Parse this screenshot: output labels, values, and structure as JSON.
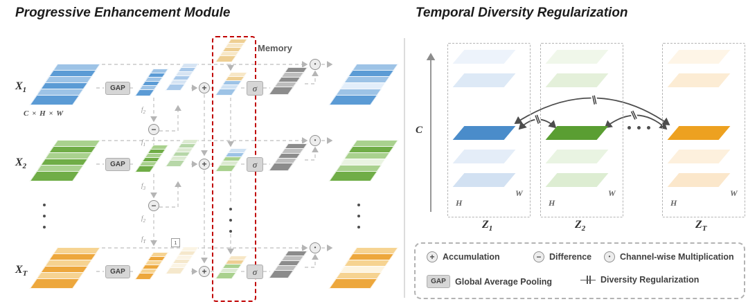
{
  "left": {
    "title": "Progressive Enhancement Module",
    "x_base": "X",
    "rows": [
      {
        "sub": "1"
      },
      {
        "sub": "2"
      },
      {
        "sub": "T"
      }
    ],
    "dims_label": "C × H × W",
    "gap_label": "GAP",
    "sigma_label": "σ",
    "memory_label": "Memory",
    "one_label": "1",
    "marks": [
      {
        "base": "f",
        "sub": "2"
      },
      {
        "base": "f",
        "sub": "1"
      },
      {
        "base": "f",
        "sub": "3"
      },
      {
        "base": "f",
        "sub": "2"
      },
      {
        "base": "f",
        "sub": "T"
      }
    ]
  },
  "right": {
    "title": "Temporal Diversity Regularization",
    "axis_label": "C",
    "z_base": "Z",
    "reg_symbol": "∥",
    "frames": [
      {
        "sub": "1",
        "h_label": "H",
        "w_label": "W"
      },
      {
        "sub": "2",
        "h_label": "H",
        "w_label": "W"
      },
      {
        "sub": "T",
        "h_label": "H",
        "w_label": "W"
      }
    ]
  },
  "operators": {
    "plus": "+",
    "minus": "−",
    "multiply": "•",
    "gap": "GAP"
  },
  "legend": {
    "accumulation_label": "Accumulation",
    "difference_label": "Difference",
    "channelwise_label": "Channel-wise Multiplication",
    "gap_label": "Global Average Pooling",
    "diversity_label": "Diversity Regularization"
  },
  "colors": {
    "accent_red": "#c00000",
    "stacks": {
      "blue": [
        "#5b9bd5",
        "#9dc3e6"
      ],
      "blue_light": [
        "#a9c9ea",
        "#d6e4f3"
      ],
      "green": [
        "#70ad47",
        "#a9d18e"
      ],
      "green_light": [
        "#b7d7a8",
        "#dcead1"
      ],
      "orange": [
        "#eda73c",
        "#f6d391"
      ],
      "pale": [
        "#f5e8cc",
        "#fbf4e4"
      ],
      "gray": [
        "#8c8c8c",
        "#bdbdbd"
      ],
      "mem_tan": [
        "#eecf93",
        "#f7e7c6"
      ],
      "mem_blue": [
        "#9dc3e6",
        "#cfe2f3",
        "#9dc3e6",
        "#eecf93",
        "#f7e7c6"
      ],
      "mem_green": [
        "#a9d18e",
        "#dcead1",
        "#a9d18e",
        "#9dc3e6",
        "#cfe2f3"
      ],
      "mem_mix": [
        "#a9d18e",
        "#dcead1",
        "#a9d18e",
        "#eecf93",
        "#f7e7c6"
      ],
      "blue_out": [
        "#5b9bd5",
        "#9dc3e6",
        "#e3eefa",
        "#9dc3e6",
        "#5b9bd5",
        "#9dc3e6"
      ],
      "green_out": [
        "#70ad47",
        "#a9d18e",
        "#e9f3e1",
        "#a9d18e",
        "#70ad47",
        "#a9d18e"
      ],
      "orange_out": [
        "#eda73c",
        "#f6d391",
        "#fdf4e0",
        "#f6d391",
        "#eda73c",
        "#f6d391"
      ],
      "z_blue": [
        "#d2e1f2",
        "#e4edf8",
        "#4a8cca",
        "#dde9f6",
        "#edf3fb"
      ],
      "z_green": [
        "#ddedd2",
        "#e9f4e2",
        "#5a9e32",
        "#e4f0da",
        "#f0f7ea"
      ],
      "z_orange": [
        "#fbe7cb",
        "#fdf0dd",
        "#eda120",
        "#fcecd4",
        "#fef5e7"
      ]
    }
  }
}
